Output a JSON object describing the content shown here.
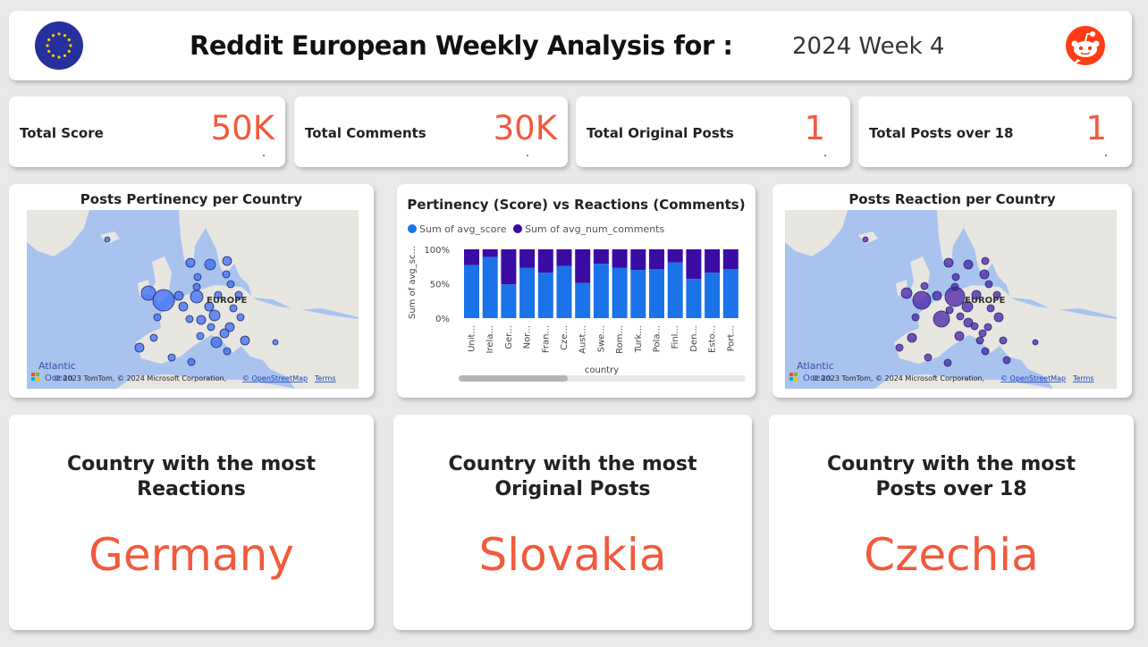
{
  "header": {
    "title": "Reddit European Weekly Analysis for :",
    "period": "2024 Week 4"
  },
  "kpis": [
    {
      "label": "Total Score",
      "value": "50K"
    },
    {
      "label": "Total Comments",
      "value": "30K"
    },
    {
      "label": "Total Original Posts",
      "value": "1"
    },
    {
      "label": "Total Posts over 18",
      "value": "1"
    }
  ],
  "maps": {
    "left": {
      "title": "Posts Pertinency per Country",
      "region_label": "EUROPE",
      "ocean_label": "Atlantic",
      "ocean_label2": "Ocean",
      "attribution": "© 2023 TomTom, © 2024 Microsoft Corporation,",
      "osm_link": "© OpenStreetMap",
      "terms_link": "Terms",
      "bubble_color": "#3b6cf6"
    },
    "right": {
      "title": "Posts Reaction per Country",
      "region_label": "EUROPE",
      "ocean_label": "Atlantic",
      "ocean_label2": "Ocean",
      "attribution": "© 2023 TomTom, © 2024 Microsoft Corporation,",
      "osm_link": "© OpenStreetMap",
      "terms_link": "Terms",
      "bubble_color": "#4b1fa8"
    }
  },
  "chart_data": {
    "type": "bar",
    "stacked": "100%",
    "title": "Pertinency (Score) vs Reactions (Comments)",
    "xlabel": "country",
    "ylabel": "Sum of avg_sc...",
    "ylim": [
      0,
      100
    ],
    "yticks": [
      "0%",
      "50%",
      "100%"
    ],
    "legend_position": "top-left",
    "categories": [
      "Unit...",
      "Irela...",
      "Ger...",
      "Nor...",
      "Fran...",
      "Cze...",
      "Aust...",
      "Swe...",
      "Rom...",
      "Turk...",
      "Pola...",
      "Finl...",
      "Den...",
      "Esto...",
      "Port..."
    ],
    "series": [
      {
        "name": "Sum of avg_score",
        "color": "#1a73e8",
        "values": [
          77,
          89,
          49,
          73,
          66,
          76,
          51,
          79,
          73,
          70,
          71,
          81,
          57,
          66,
          71
        ]
      },
      {
        "name": "Sum of avg_num_comments",
        "color": "#3a0ca3",
        "values": [
          23,
          11,
          51,
          27,
          34,
          24,
          49,
          21,
          27,
          30,
          29,
          19,
          43,
          34,
          29
        ]
      }
    ]
  },
  "highlights": [
    {
      "label": "Country with the most Reactions",
      "value": "Germany"
    },
    {
      "label": "Country with the most Original Posts",
      "value": "Slovakia"
    },
    {
      "label": "Country with the most Posts over 18",
      "value": "Czechia"
    }
  ]
}
